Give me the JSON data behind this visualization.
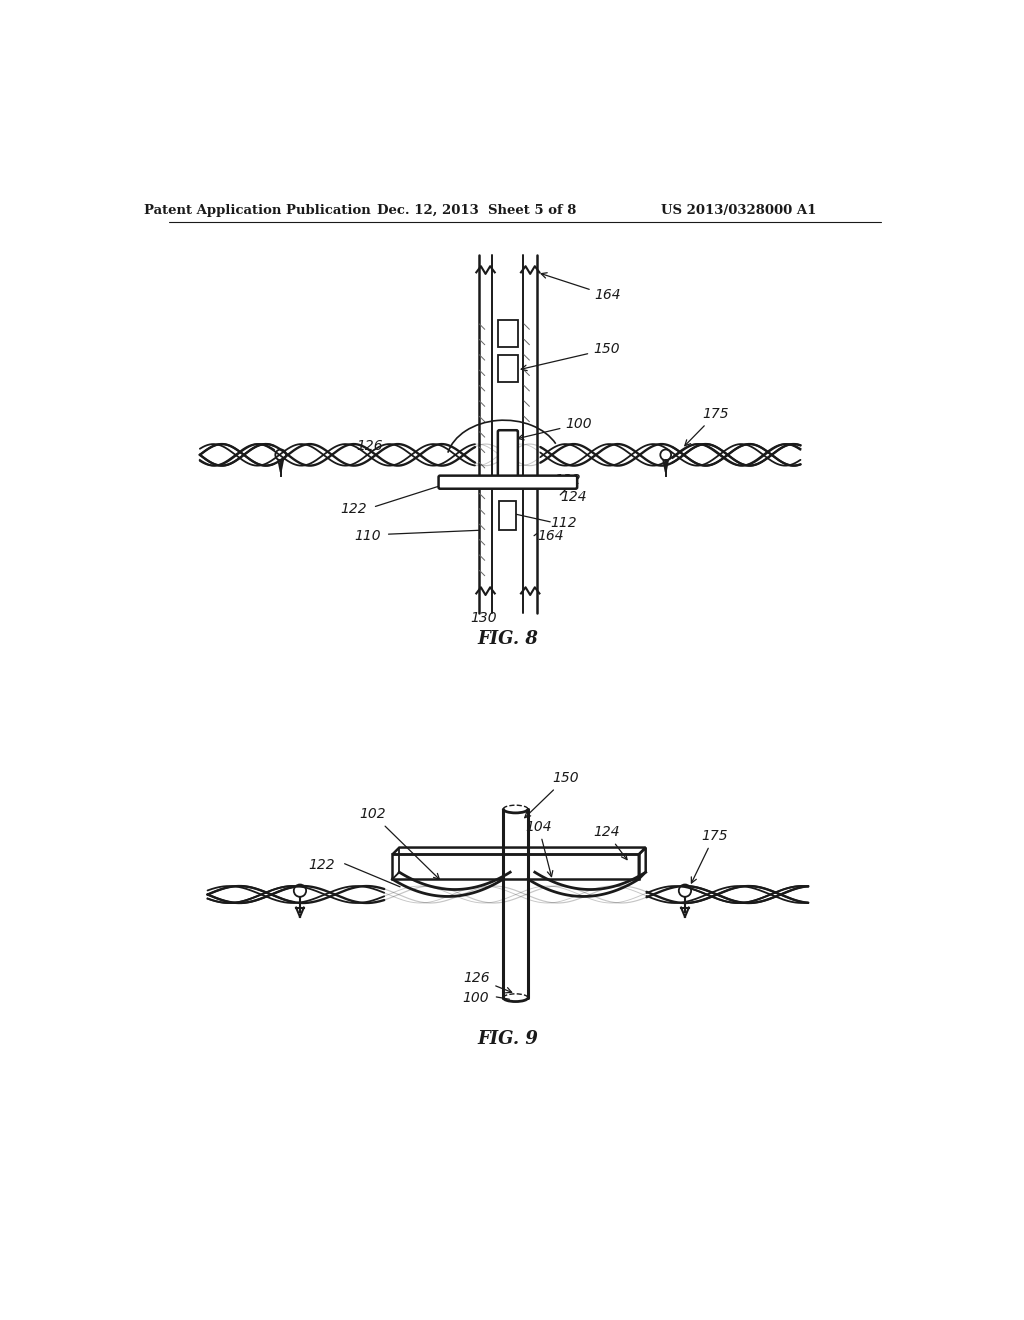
{
  "bg_color": "#ffffff",
  "header_left": "Patent Application Publication",
  "header_mid": "Dec. 12, 2013  Sheet 5 of 8",
  "header_right": "US 2013/0328000 A1",
  "fig8_label": "FIG. 8",
  "fig9_label": "FIG. 9",
  "color_main": "#1a1a1a"
}
